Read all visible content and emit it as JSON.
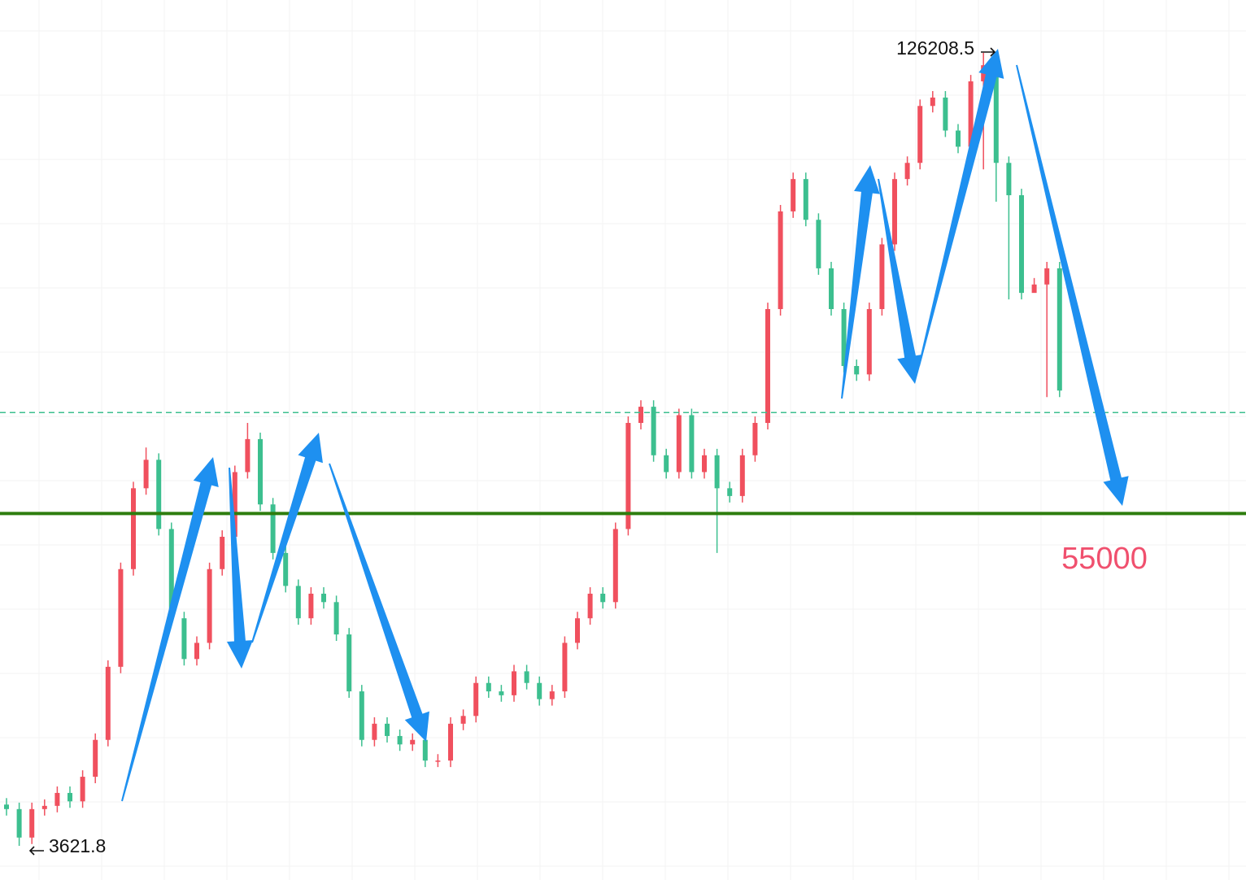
{
  "chart_data": {
    "type": "candlestick",
    "up_color": "#f0505e",
    "down_color": "#3cbf8f",
    "ylim": [
      -1660,
      134380
    ],
    "open": [
      10000,
      9300,
      4900,
      9300,
      9800,
      11800,
      10500,
      14300,
      20000,
      31300,
      46400,
      58900,
      63300,
      52600,
      38800,
      32500,
      35000,
      46400,
      51400,
      61400,
      66500,
      56400,
      48900,
      43800,
      38800,
      42600,
      41300,
      36300,
      27500,
      20000,
      22500,
      20600,
      19300,
      20000,
      16800,
      16800,
      22500,
      23700,
      28800,
      27500,
      26900,
      30600,
      28800,
      26300,
      27500,
      35000,
      38800,
      42600,
      41300,
      52600,
      69000,
      71500,
      64000,
      61400,
      70200,
      61400,
      64000,
      58900,
      57700,
      64000,
      69000,
      86600,
      101700,
      106700,
      100400,
      92900,
      86600,
      77800,
      76500,
      86600,
      96600,
      106700,
      109200,
      118000,
      119300,
      114200,
      111700,
      121800,
      124300,
      109200,
      104200,
      89100,
      90400,
      92900
    ],
    "high": [
      11000,
      10300,
      10300,
      10800,
      12800,
      12800,
      15300,
      21000,
      32300,
      47400,
      59900,
      65200,
      64300,
      53600,
      39800,
      36000,
      47400,
      52400,
      62400,
      69000,
      67500,
      57400,
      49900,
      44800,
      43600,
      43600,
      42300,
      37300,
      28500,
      23500,
      23500,
      21600,
      21000,
      21000,
      17800,
      23500,
      24700,
      29800,
      29800,
      28500,
      31600,
      31600,
      29800,
      28500,
      36000,
      39800,
      43600,
      43600,
      53600,
      70000,
      72500,
      72500,
      65000,
      71200,
      71200,
      65000,
      65000,
      59900,
      65000,
      70000,
      87600,
      102700,
      107700,
      107700,
      101400,
      93900,
      87600,
      78800,
      87600,
      97600,
      107700,
      110200,
      119000,
      120300,
      120300,
      115200,
      122800,
      126208.5,
      125300,
      110200,
      105200,
      91400,
      93900,
      93900
    ],
    "low": [
      8300,
      3621.8,
      3900,
      8300,
      8800,
      9500,
      9500,
      13300,
      19000,
      30300,
      45400,
      57900,
      51600,
      37800,
      31500,
      31500,
      34000,
      45400,
      50400,
      60400,
      55400,
      47900,
      42800,
      37800,
      37800,
      40300,
      35300,
      26500,
      19000,
      19000,
      19600,
      18300,
      18300,
      15800,
      15800,
      15800,
      21500,
      22700,
      26500,
      25900,
      25900,
      27800,
      25300,
      25300,
      26500,
      34000,
      37800,
      40300,
      40300,
      51600,
      68000,
      63000,
      60400,
      60400,
      60400,
      60400,
      48900,
      56700,
      56700,
      63000,
      68000,
      85600,
      100700,
      99400,
      91900,
      85600,
      76800,
      75500,
      75500,
      85600,
      95600,
      105700,
      108200,
      117000,
      113200,
      110700,
      110700,
      108200,
      103200,
      88100,
      88100,
      89400,
      73000,
      73000
    ],
    "close": [
      9300,
      4900,
      9300,
      9800,
      11800,
      10500,
      14300,
      20000,
      31300,
      46400,
      58900,
      63300,
      52600,
      38800,
      32500,
      35000,
      46400,
      51400,
      61400,
      66500,
      56400,
      48900,
      43800,
      38800,
      42600,
      41300,
      36300,
      27500,
      20000,
      22500,
      20600,
      19300,
      20000,
      16800,
      16800,
      22500,
      23700,
      28800,
      27500,
      26900,
      30600,
      28800,
      26300,
      27500,
      35000,
      38800,
      42600,
      41300,
      52600,
      69000,
      71500,
      64000,
      61400,
      70200,
      61400,
      64000,
      58900,
      57700,
      64000,
      69000,
      86600,
      101700,
      106700,
      100400,
      92900,
      86600,
      77800,
      76500,
      86600,
      96600,
      106700,
      109200,
      118000,
      119300,
      114200,
      111700,
      121800,
      124300,
      109200,
      104200,
      89100,
      90400,
      92900,
      74000
    ],
    "support_line": {
      "value": 55000,
      "color": "#2e7d0e"
    },
    "dashed_line": {
      "value": 70600,
      "color": "#3cbf8f"
    },
    "label_color": "#f0506e"
  }
}
